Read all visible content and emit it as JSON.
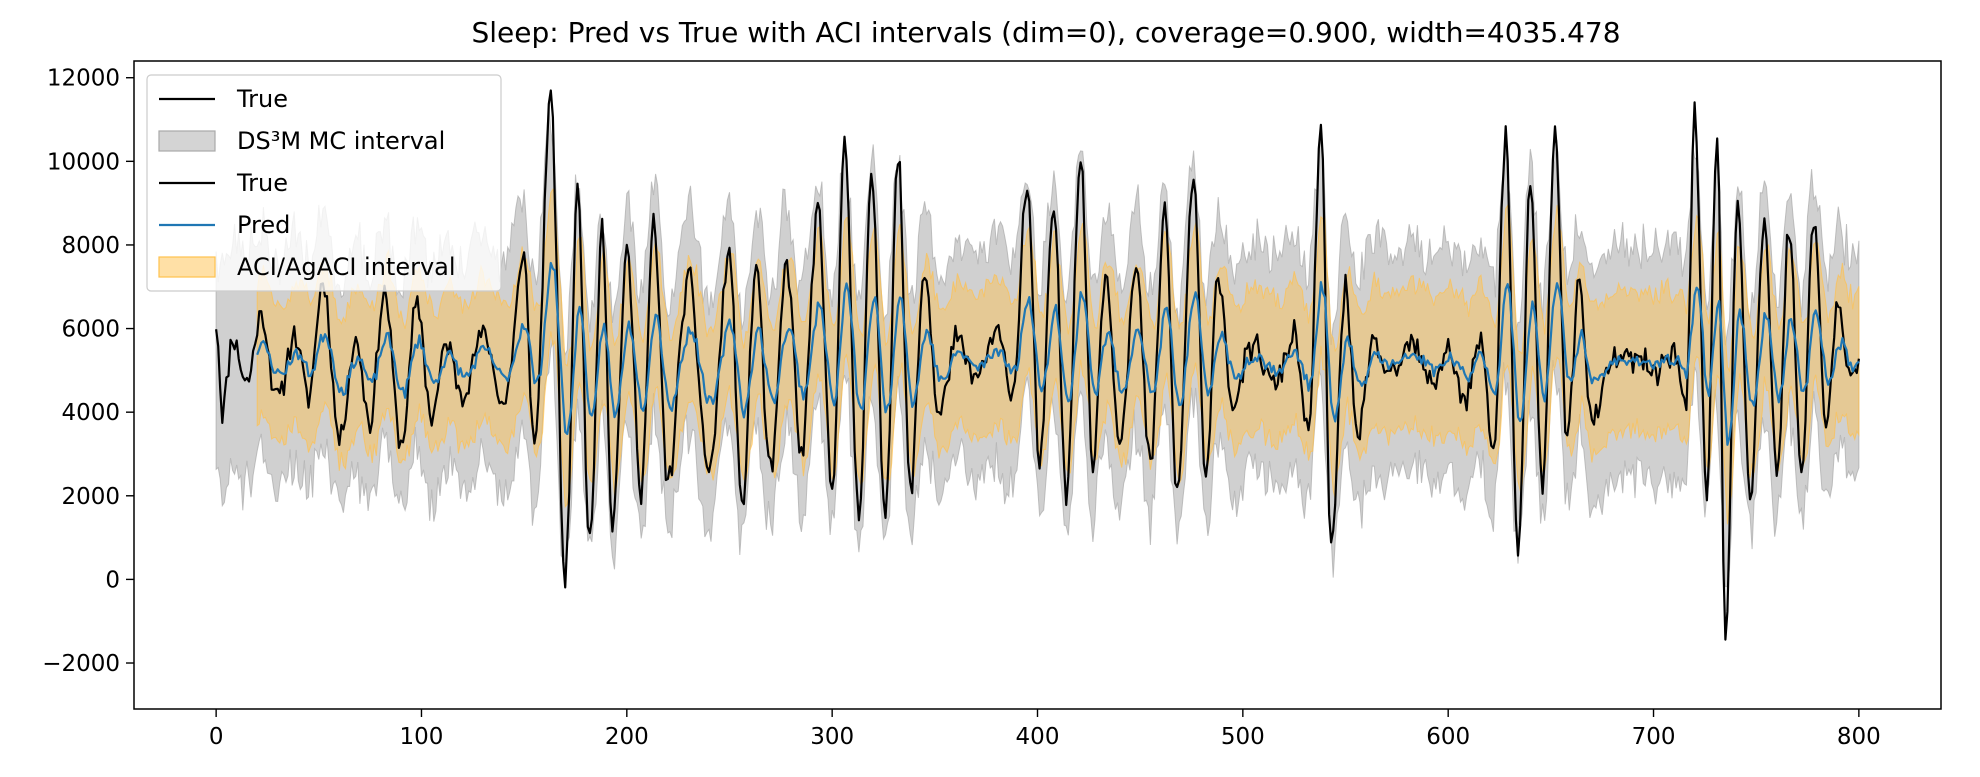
{
  "chart_data": {
    "type": "line",
    "title": "Sleep: Pred vs True with ACI intervals (dim=0), coverage=0.900, width=4035.478",
    "xlabel": "",
    "ylabel": "",
    "xlim": [
      -40,
      840
    ],
    "ylim": [
      -3100,
      12400
    ],
    "xticks": [
      0,
      100,
      200,
      300,
      400,
      500,
      600,
      700,
      800
    ],
    "yticks": [
      -2000,
      0,
      2000,
      4000,
      6000,
      8000,
      10000,
      12000
    ],
    "xtick_labels": [
      "0",
      "100",
      "200",
      "300",
      "400",
      "500",
      "600",
      "700",
      "800"
    ],
    "ytick_labels": [
      "−2000",
      "0",
      "2000",
      "4000",
      "6000",
      "8000",
      "10000",
      "12000"
    ],
    "grid": false,
    "legend_position": "top-left",
    "legend": [
      {
        "label": "True",
        "kind": "line",
        "color": "#000000"
      },
      {
        "label": "DS³M MC interval",
        "kind": "band",
        "color": "#a9a9a9"
      },
      {
        "label": "True",
        "kind": "line",
        "color": "#000000"
      },
      {
        "label": "Pred",
        "kind": "line",
        "color": "#1f77b4"
      },
      {
        "label": "ACI/AgACI interval",
        "kind": "band",
        "color": "#ffc14d"
      }
    ],
    "series": [
      {
        "name": "True",
        "color": "#000000",
        "x_start": 0,
        "x_end": 800,
        "anchors": [
          [
            0,
            6200
          ],
          [
            3,
            4100
          ],
          [
            8,
            5800
          ],
          [
            15,
            4700
          ],
          [
            22,
            6300
          ],
          [
            30,
            4300
          ],
          [
            38,
            5900
          ],
          [
            45,
            4400
          ],
          [
            52,
            7100
          ],
          [
            60,
            3400
          ],
          [
            68,
            5700
          ],
          [
            75,
            3800
          ],
          [
            82,
            6900
          ],
          [
            90,
            3200
          ],
          [
            98,
            6600
          ],
          [
            105,
            3900
          ],
          [
            112,
            5600
          ],
          [
            120,
            4500
          ],
          [
            130,
            5900
          ],
          [
            140,
            4200
          ],
          [
            150,
            7600
          ],
          [
            155,
            3200
          ],
          [
            163,
            11500
          ],
          [
            170,
            -100
          ],
          [
            176,
            9300
          ],
          [
            182,
            900
          ],
          [
            188,
            8600
          ],
          [
            193,
            1300
          ],
          [
            200,
            7800
          ],
          [
            207,
            2200
          ],
          [
            213,
            8400
          ],
          [
            220,
            2400
          ],
          [
            230,
            7200
          ],
          [
            240,
            2600
          ],
          [
            250,
            7800
          ],
          [
            256,
            1700
          ],
          [
            263,
            7500
          ],
          [
            270,
            2500
          ],
          [
            278,
            7600
          ],
          [
            285,
            2900
          ],
          [
            293,
            8800
          ],
          [
            300,
            2100
          ],
          [
            306,
            10300
          ],
          [
            313,
            1500
          ],
          [
            319,
            9600
          ],
          [
            326,
            1600
          ],
          [
            332,
            10100
          ],
          [
            338,
            2200
          ],
          [
            345,
            7400
          ],
          [
            352,
            3900
          ],
          [
            360,
            5700
          ],
          [
            370,
            4800
          ],
          [
            380,
            5900
          ],
          [
            388,
            4500
          ],
          [
            395,
            9400
          ],
          [
            401,
            2700
          ],
          [
            408,
            8900
          ],
          [
            414,
            2200
          ],
          [
            421,
            10100
          ],
          [
            427,
            2700
          ],
          [
            433,
            7400
          ],
          [
            440,
            3400
          ],
          [
            448,
            7400
          ],
          [
            455,
            2800
          ],
          [
            462,
            8800
          ],
          [
            468,
            2000
          ],
          [
            476,
            9600
          ],
          [
            482,
            2300
          ],
          [
            488,
            7400
          ],
          [
            495,
            4200
          ],
          [
            505,
            5600
          ],
          [
            515,
            4700
          ],
          [
            525,
            5800
          ],
          [
            532,
            3400
          ],
          [
            538,
            10800
          ],
          [
            543,
            700
          ],
          [
            550,
            7100
          ],
          [
            556,
            3200
          ],
          [
            563,
            5700
          ],
          [
            572,
            4800
          ],
          [
            582,
            5600
          ],
          [
            592,
            4700
          ],
          [
            600,
            5500
          ],
          [
            608,
            4300
          ],
          [
            616,
            5700
          ],
          [
            622,
            3000
          ],
          [
            628,
            10700
          ],
          [
            634,
            500
          ],
          [
            640,
            9300
          ],
          [
            646,
            2200
          ],
          [
            652,
            10700
          ],
          [
            658,
            3400
          ],
          [
            664,
            7100
          ],
          [
            670,
            3700
          ],
          [
            680,
            5200
          ],
          [
            690,
            5300
          ],
          [
            700,
            5000
          ],
          [
            710,
            5500
          ],
          [
            716,
            4100
          ],
          [
            720,
            11100
          ],
          [
            726,
            2100
          ],
          [
            731,
            10700
          ],
          [
            735,
            -1500
          ],
          [
            741,
            9100
          ],
          [
            747,
            1900
          ],
          [
            754,
            8600
          ],
          [
            760,
            2500
          ],
          [
            766,
            8300
          ],
          [
            772,
            2600
          ],
          [
            778,
            8600
          ],
          [
            784,
            3800
          ],
          [
            790,
            6500
          ],
          [
            795,
            4900
          ],
          [
            800,
            5100
          ]
        ],
        "amp_scale": 1.0,
        "jitter": 700,
        "seed": 11
      },
      {
        "name": "Pred",
        "color": "#1f77b4",
        "x_start": 20,
        "x_end": 800,
        "shrink": 0.42,
        "smooth": 0.55,
        "jitter": 300,
        "seed": 23
      }
    ],
    "bands": [
      {
        "name": "DS³M MC interval",
        "color": "#a9a9a9",
        "opacity": 0.55,
        "x_start": 0,
        "x_end": 800,
        "base": "true_smooth",
        "half_width": 2700,
        "jitter": 900,
        "seed": 37
      },
      {
        "name": "ACI/AgACI interval",
        "color": "#ffc14d",
        "opacity": 0.45,
        "x_start": 20,
        "x_end": 800,
        "base": "pred",
        "half_width": 1700,
        "jitter": 350,
        "seed": 53
      }
    ]
  }
}
